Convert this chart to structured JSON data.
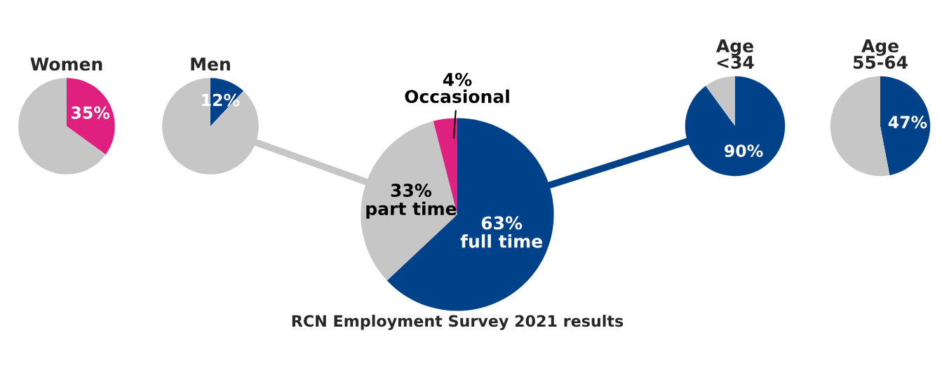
{
  "chart_data": [
    {
      "type": "pie",
      "title": "Women",
      "categories": [
        null,
        null
      ],
      "values": [
        35,
        65
      ],
      "colors": [
        "#e0207f",
        "#c6c6c6"
      ],
      "value_labels": [
        "35%",
        null
      ]
    },
    {
      "type": "pie",
      "title": "Men",
      "categories": [
        null,
        null
      ],
      "values": [
        12,
        88
      ],
      "colors": [
        "#00428a",
        "#c6c6c6"
      ],
      "value_labels": [
        "12%",
        null
      ]
    },
    {
      "type": "pie",
      "categories": [
        "full time",
        "part time",
        "Occasional"
      ],
      "values": [
        63,
        33,
        4
      ],
      "colors": [
        "#00428a",
        "#c6c6c6",
        "#e0207f"
      ],
      "value_labels": [
        "63%",
        "33%",
        "4%"
      ],
      "annotations": [
        "RCN Employment Survey 2021 results"
      ]
    },
    {
      "type": "pie",
      "title": "Age\n<34",
      "categories": [
        null,
        null
      ],
      "values": [
        90,
        10
      ],
      "colors": [
        "#00428a",
        "#c6c6c6"
      ],
      "value_labels": [
        "90%",
        null
      ]
    },
    {
      "type": "pie",
      "title": "Age\n55-64",
      "categories": [
        null,
        null
      ],
      "values": [
        47,
        53
      ],
      "colors": [
        "#00428a",
        "#c6c6c6"
      ],
      "value_labels": [
        "47%",
        null
      ]
    }
  ]
}
